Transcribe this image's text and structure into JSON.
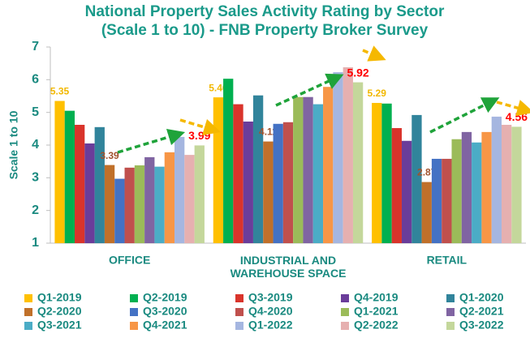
{
  "chart_data": {
    "type": "bar",
    "title": [
      "National Property Sales Activity Rating by Sector",
      "(Scale 1 to 10) - FNB Property Broker Survey"
    ],
    "y_label": "Scale 1 to 10",
    "categories": [
      "OFFICE",
      "INDUSTRIAL AND WAREHOUSE SPACE",
      "RETAIL"
    ],
    "ylim": [
      1,
      7
    ],
    "yticks": [
      1,
      2,
      3,
      4,
      5,
      6,
      7
    ],
    "grid": false,
    "legend": "bottom",
    "series": [
      {
        "name": "Q1-2019",
        "color": "#FFC000",
        "values": [
          5.35,
          5.46,
          5.29
        ],
        "data_labels": true,
        "label_color": "#F2B800"
      },
      {
        "name": "Q2-2019",
        "color": "#00B050",
        "values": [
          5.05,
          6.03,
          5.27
        ]
      },
      {
        "name": "Q3-2019",
        "color": "#D9342B",
        "values": [
          4.62,
          5.25,
          4.52
        ]
      },
      {
        "name": "Q4-2019",
        "color": "#6A3D9A",
        "values": [
          4.05,
          4.72,
          4.13
        ]
      },
      {
        "name": "Q1-2020",
        "color": "#31849B",
        "values": [
          4.55,
          5.52,
          4.92
        ]
      },
      {
        "name": "Q2-2020",
        "color": "#C0702A",
        "values": [
          3.39,
          4.11,
          2.87
        ],
        "data_labels": true,
        "label_color": "#A0522D"
      },
      {
        "name": "Q3-2020",
        "color": "#4472C4",
        "values": [
          2.97,
          4.65,
          3.58
        ]
      },
      {
        "name": "Q4-2020",
        "color": "#C0504D",
        "values": [
          3.31,
          4.7,
          3.58
        ]
      },
      {
        "name": "Q1-2021",
        "color": "#9BBB59",
        "values": [
          3.38,
          5.47,
          4.18
        ]
      },
      {
        "name": "Q2-2021",
        "color": "#8064A2",
        "values": [
          3.63,
          5.47,
          4.4
        ]
      },
      {
        "name": "Q3-2021",
        "color": "#4BACC6",
        "values": [
          3.34,
          5.25,
          4.08
        ]
      },
      {
        "name": "Q4-2021",
        "color": "#F79646",
        "values": [
          3.78,
          5.78,
          4.4
        ]
      },
      {
        "name": "Q1-2022",
        "color": "#A5B6E0",
        "values": [
          4.25,
          6.23,
          4.87
        ]
      },
      {
        "name": "Q2-2022",
        "color": "#E6B0B0",
        "values": [
          3.7,
          6.38,
          4.62
        ]
      },
      {
        "name": "Q3-2022",
        "color": "#C4D79B",
        "values": [
          3.99,
          5.92,
          4.56
        ],
        "data_labels": true,
        "label_color": "#FF0000"
      }
    ]
  }
}
